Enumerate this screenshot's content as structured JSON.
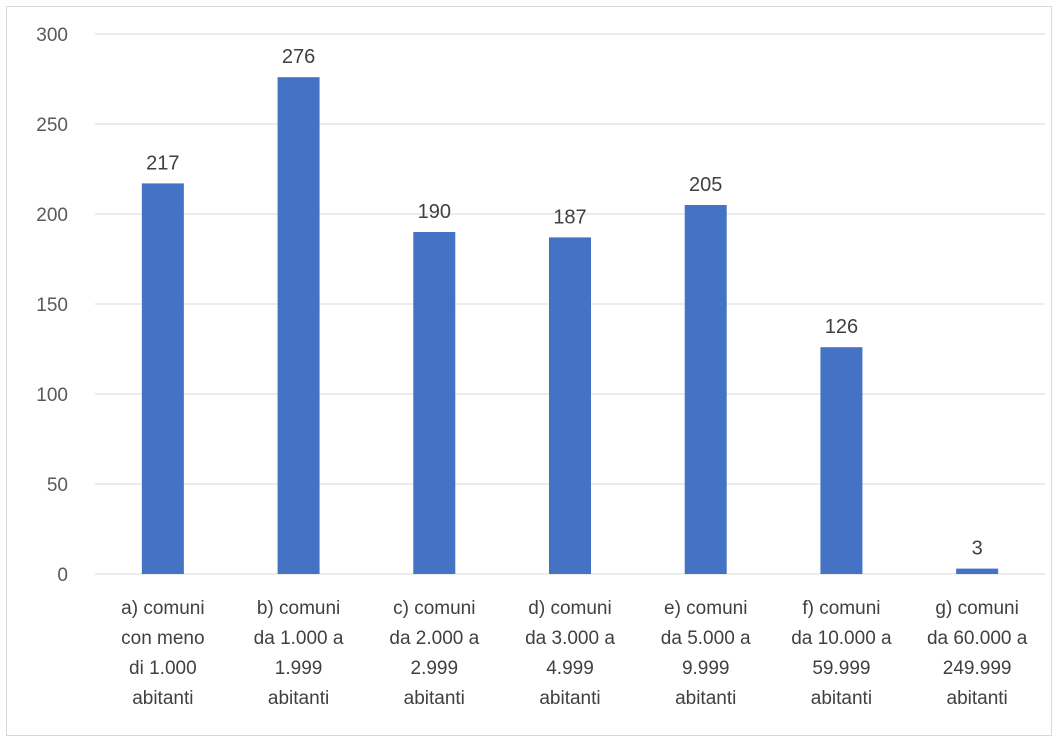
{
  "chart_data": {
    "type": "bar",
    "title": "",
    "xlabel": "",
    "ylabel": "",
    "categories": [
      [
        "a) comuni",
        "con meno",
        "di 1.000",
        "abitanti"
      ],
      [
        "b) comuni",
        "da 1.000 a",
        "1.999",
        "abitanti"
      ],
      [
        "c) comuni",
        "da 2.000 a",
        "2.999",
        "abitanti"
      ],
      [
        "d) comuni",
        "da 3.000 a",
        "4.999",
        "abitanti"
      ],
      [
        "e) comuni",
        "da 5.000 a",
        "9.999",
        "abitanti"
      ],
      [
        "f) comuni",
        "da 10.000 a",
        "59.999",
        "abitanti"
      ],
      [
        "g) comuni",
        "da 60.000 a",
        "249.999",
        "abitanti"
      ]
    ],
    "values": [
      217,
      276,
      190,
      187,
      205,
      126,
      3
    ],
    "data_labels": [
      "217",
      "276",
      "190",
      "187",
      "205",
      "126",
      "3"
    ],
    "y_ticks": [
      0,
      50,
      100,
      150,
      200,
      250,
      300
    ],
    "ylim": [
      0,
      300
    ],
    "grid": true,
    "legend": "none",
    "bar_color": "#4472c4",
    "grid_color": "#d9d9d9"
  }
}
